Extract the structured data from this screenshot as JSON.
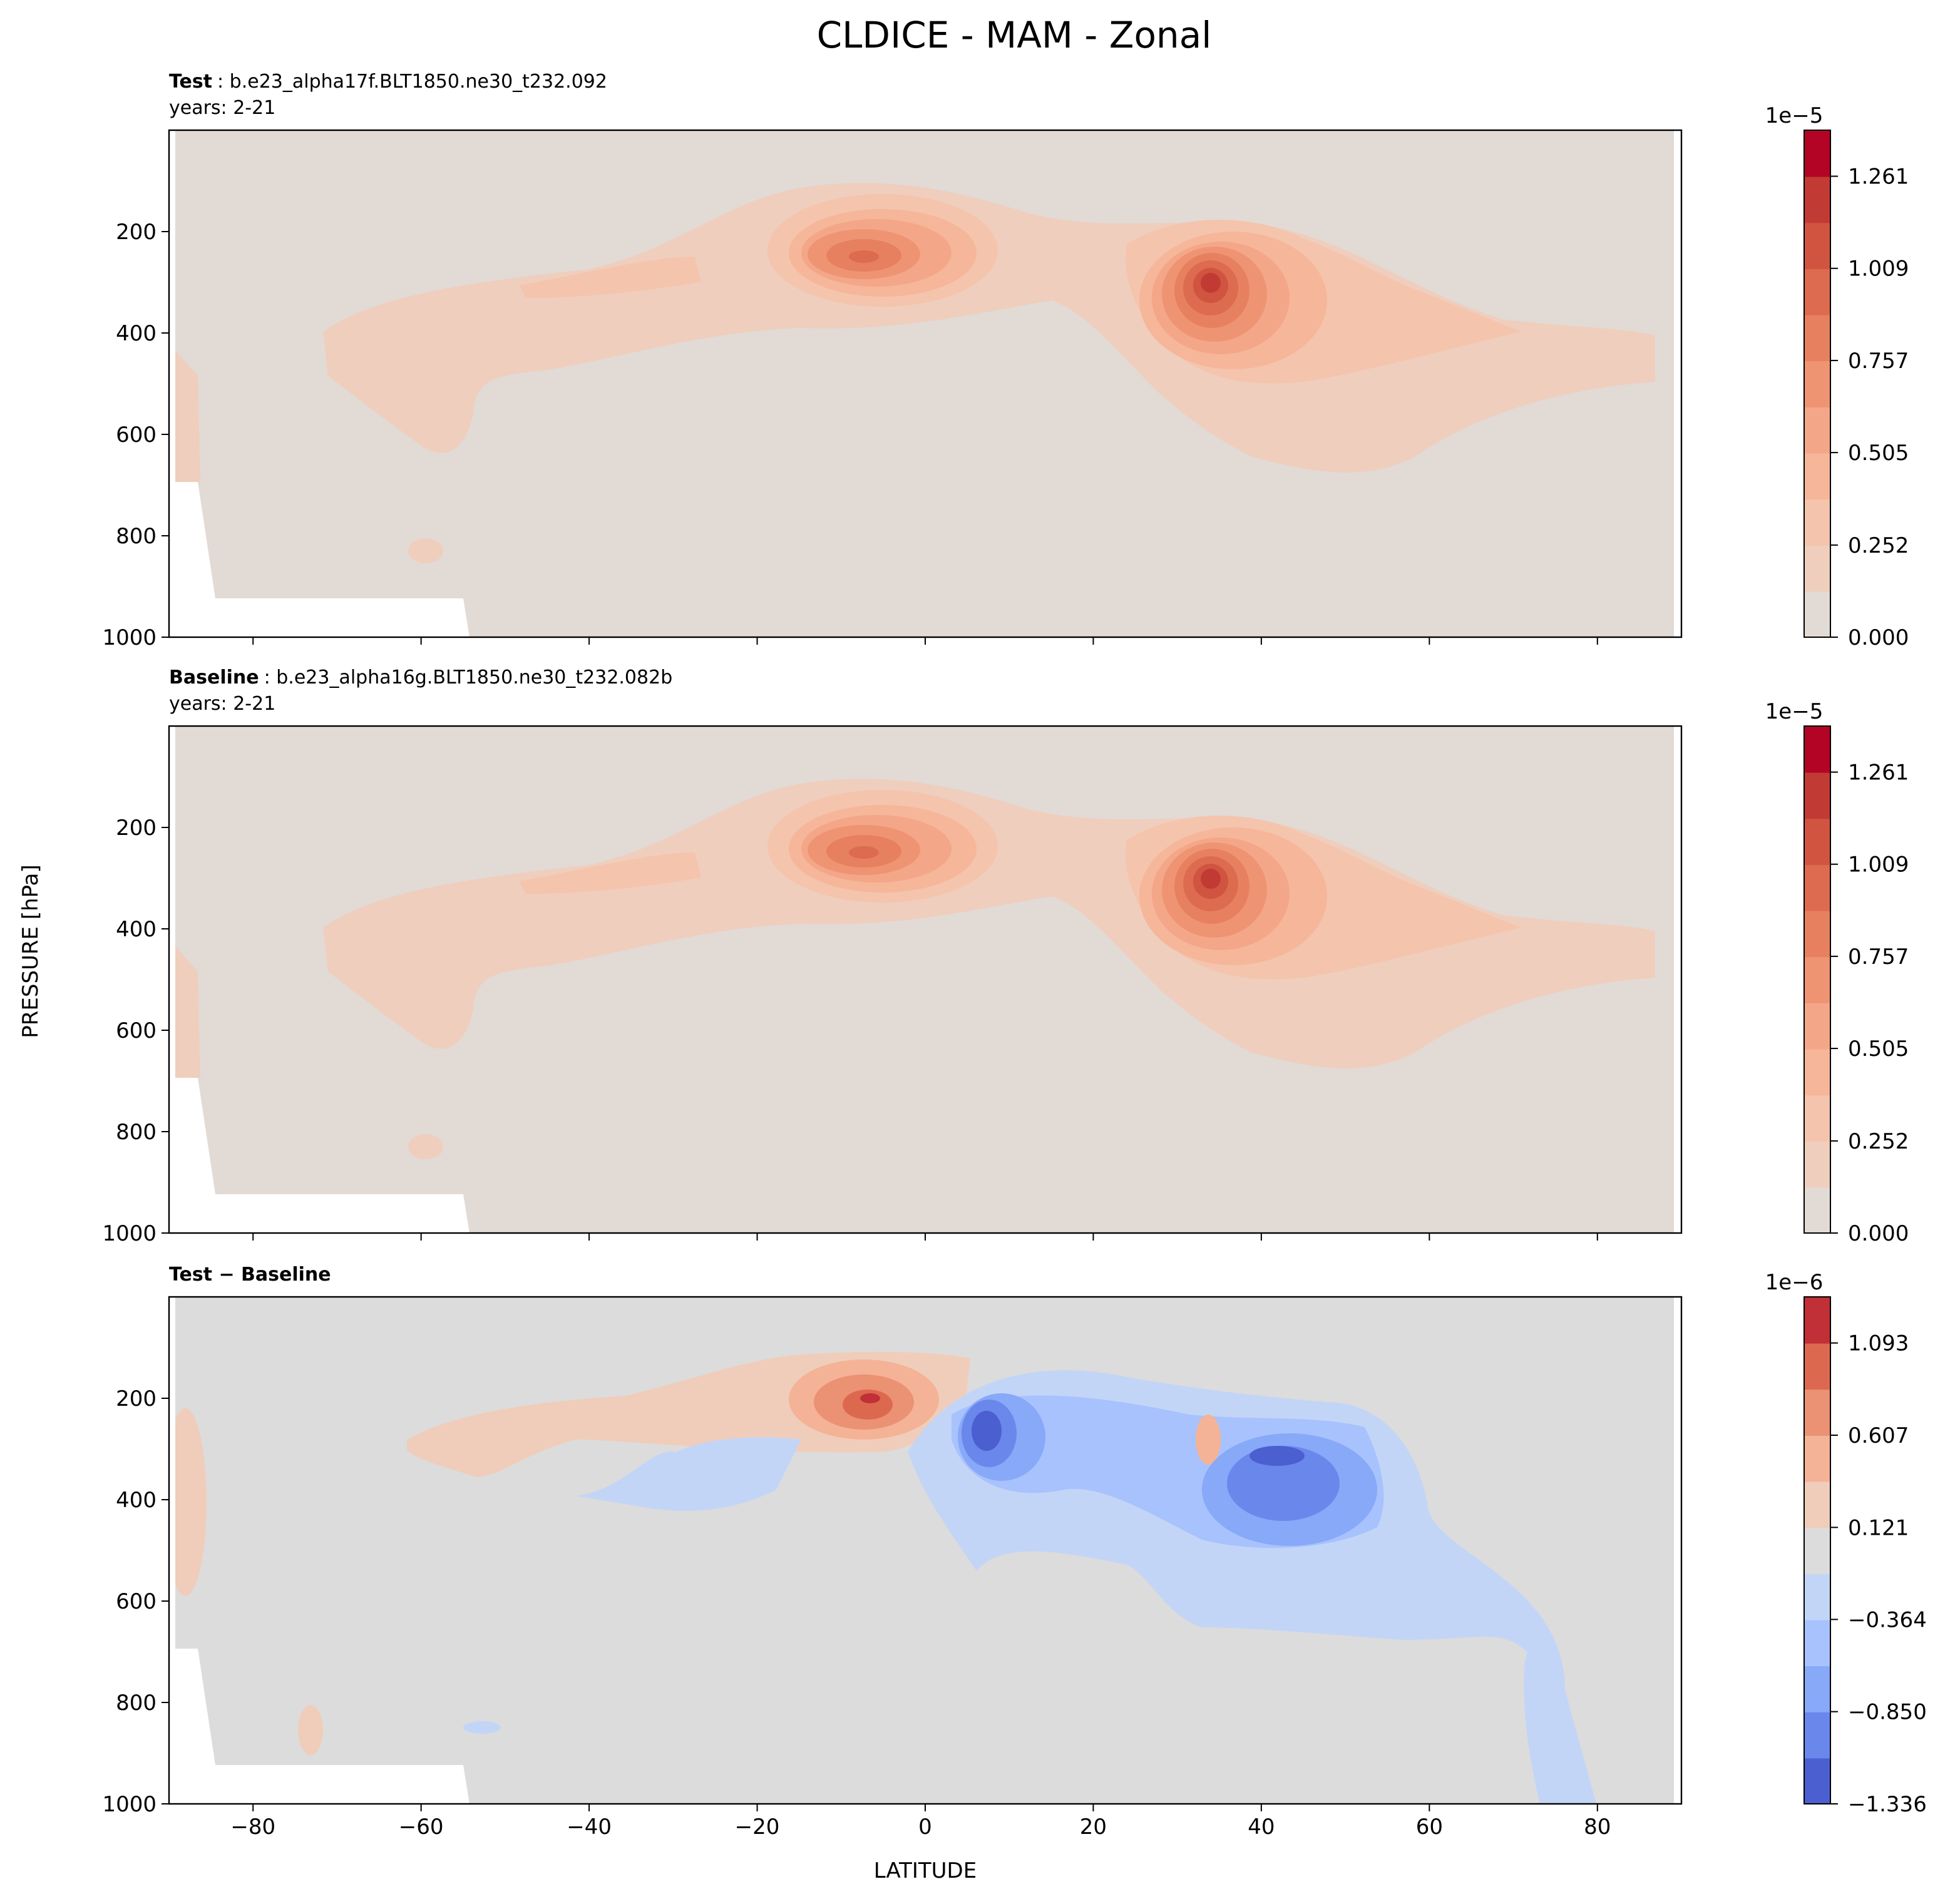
{
  "title": "CLDICE - MAM - Zonal",
  "x_label": "LATITUDE",
  "y_label": "PRESSURE [hPa]",
  "chart_data": [
    {
      "type": "contour",
      "label": "Test",
      "subtitle": ": b.e23_alpha17f.BLT1850.ne30_t232.092",
      "years": "years: 2-21",
      "xlim": [
        -90,
        90
      ],
      "ylim": [
        1000,
        0
      ],
      "xticks": [
        -80,
        -60,
        -40,
        -20,
        0,
        20,
        40,
        60,
        80
      ],
      "yticks": [
        200,
        400,
        600,
        800,
        1000
      ],
      "colorbar": {
        "offset": "1e−5",
        "lim": [
          0,
          1.387
        ],
        "ticks": [
          {
            "value": 0,
            "label": "0.000"
          },
          0.252,
          0.505,
          0.757,
          1.009,
          1.261
        ],
        "colors": [
          "#e2dad5",
          "#efcebd",
          "#f4c4ad",
          "#f6b69a",
          "#f4a688",
          "#ef9473",
          "#e7805f",
          "#dd6b4f",
          "#d05440",
          "#c13b34",
          "#b40426"
        ]
      }
    },
    {
      "type": "contour",
      "label": "Baseline",
      "subtitle": ": b.e23_alpha16g.BLT1850.ne30_t232.082b",
      "years": "years: 2-21",
      "xlim": [
        -90,
        90
      ],
      "ylim": [
        1000,
        0
      ],
      "xticks": [
        -80,
        -60,
        -40,
        -20,
        0,
        20,
        40,
        60,
        80
      ],
      "yticks": [
        200,
        400,
        600,
        800,
        1000
      ],
      "colorbar": {
        "offset": "1e−5",
        "lim": [
          0,
          1.387
        ],
        "ticks": [
          {
            "value": 0,
            "label": "0.000"
          },
          0.252,
          0.505,
          0.757,
          1.009,
          1.261
        ],
        "colors": [
          "#e2dad5",
          "#efcebd",
          "#f4c4ad",
          "#f6b69a",
          "#f4a688",
          "#ef9473",
          "#e7805f",
          "#dd6b4f",
          "#d05440",
          "#c13b34",
          "#b40426"
        ]
      }
    },
    {
      "type": "contour",
      "label": "Test − Baseline",
      "xlim": [
        -90,
        90
      ],
      "ylim": [
        1000,
        0
      ],
      "xticks": [
        {
          "value": -80,
          "label": "−80"
        },
        {
          "value": -60,
          "label": "−60"
        },
        {
          "value": -40,
          "label": "−40"
        },
        {
          "value": -20,
          "label": "−20"
        },
        0,
        20,
        40,
        60,
        80
      ],
      "yticks": [
        200,
        400,
        600,
        800,
        1000
      ],
      "colorbar": {
        "offset": "1e−6",
        "lim": [
          -1.336,
          1.336
        ],
        "ticks": [
          {
            "value": -1.336,
            "label": "−1.336"
          },
          {
            "value": -0.85,
            "label": "−0.850"
          },
          {
            "value": -0.364,
            "label": "−0.364"
          },
          0.121,
          0.607,
          1.093
        ],
        "colors": [
          "#4b5fd0",
          "#6a87ec",
          "#88a8f8",
          "#a7c2fd",
          "#c3d5f6",
          "#dcdcdc",
          "#f0cdba",
          "#f4b396",
          "#eb9174",
          "#dc694f",
          "#c03036"
        ]
      }
    }
  ]
}
